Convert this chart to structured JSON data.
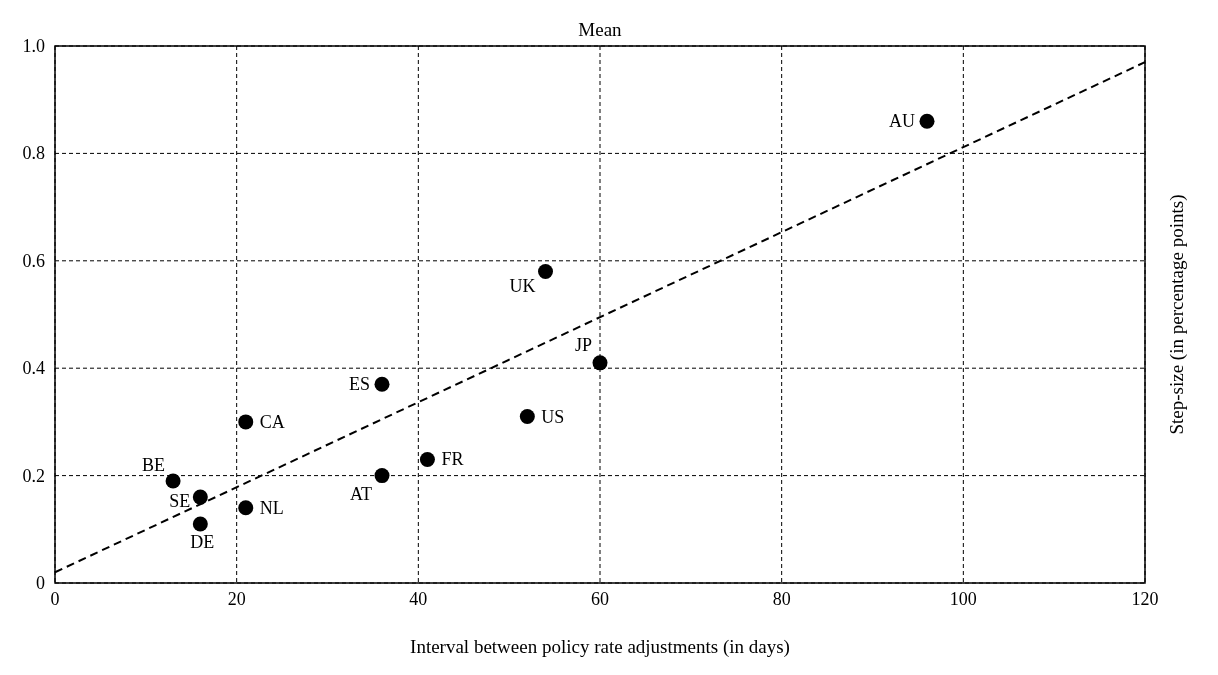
{
  "chart_data": {
    "type": "scatter",
    "title": "Mean",
    "xlabel": "Interval between policy rate adjustments (in days)",
    "ylabel": "Step-size (in percentage points)",
    "xlim": [
      0,
      120
    ],
    "xticks": [
      0,
      20,
      40,
      60,
      80,
      100,
      120
    ],
    "ylim": [
      0,
      1
    ],
    "yticks": [
      0,
      0.2,
      0.4,
      0.6,
      0.8,
      {
        "value": 1,
        "label": "1.0"
      }
    ],
    "grid": true,
    "series": [
      {
        "marker": "circle",
        "color": "#000000",
        "x": [
          96,
          54,
          60,
          36,
          52,
          21,
          41,
          36,
          13,
          16,
          21,
          16
        ],
        "values": [
          0.86,
          0.58,
          0.41,
          0.37,
          0.31,
          0.3,
          0.23,
          0.2,
          0.19,
          0.16,
          0.14,
          0.11
        ]
      },
      {
        "type": "line",
        "color": "#000000",
        "line_style": "dashed",
        "x": [
          0,
          120
        ],
        "values": [
          0.02,
          0.97
        ]
      }
    ],
    "annotations": [
      {
        "text": "AU",
        "x": 96,
        "y": 0.86
      },
      {
        "text": "UK",
        "x": 54,
        "y": 0.58
      },
      {
        "text": "JP",
        "x": 60,
        "y": 0.41
      },
      {
        "text": "ES",
        "x": 36,
        "y": 0.37
      },
      {
        "text": "US",
        "x": 52,
        "y": 0.31
      },
      {
        "text": "CA",
        "x": 21,
        "y": 0.3
      },
      {
        "text": "FR",
        "x": 41,
        "y": 0.23
      },
      {
        "text": "AT",
        "x": 36,
        "y": 0.2
      },
      {
        "text": "BE",
        "x": 13,
        "y": 0.19
      },
      {
        "text": "SE",
        "x": 16,
        "y": 0.16
      },
      {
        "text": "NL",
        "x": 21,
        "y": 0.14
      },
      {
        "text": "DE",
        "x": 16,
        "y": 0.11
      }
    ]
  }
}
